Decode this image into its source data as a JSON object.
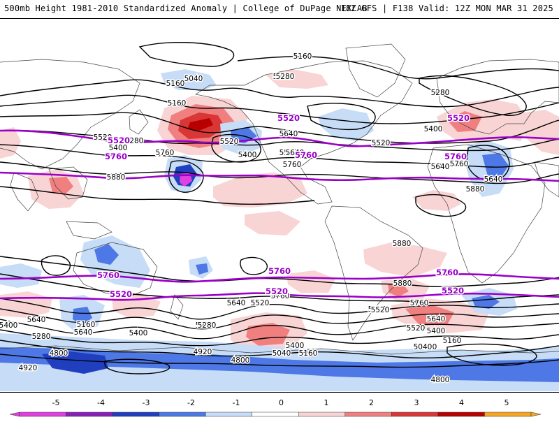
{
  "header": {
    "left": "500mb Height 1981-2010 Standardized Anomaly | College of DuPage NEXLAB",
    "right": "18Z GFS | F138 Valid: 12Z MON MAR 31 2025"
  },
  "colors": {
    "anom_neg5": "#e040e0",
    "anom_neg4": "#8a1fb8",
    "anom_neg3": "#1f3fbf",
    "anom_neg2": "#4d78e6",
    "anom_neg1": "#c6dcf7",
    "anom_pos1": "#f9d4d4",
    "anom_pos2": "#f08080",
    "anom_pos3": "#d93636",
    "anom_pos4": "#b80000",
    "anom_pos5": "#f5a623",
    "highlight_contour": "#9a00c8",
    "contour": "#000000",
    "coastline": "#444444"
  },
  "map": {
    "contour_labels": [
      "5160",
      "5040",
      "5280",
      "5160",
      "5280",
      "5520",
      "5400",
      "5640",
      "5760",
      "5520",
      "5400",
      "5880",
      "5520",
      "5640",
      "5760",
      "5280",
      "5160",
      "5520",
      "5400",
      "5640",
      "5760",
      "5640",
      "5880",
      "5280",
      "5880",
      "5880",
      "5760",
      "5640",
      "5520",
      "5400",
      "5520",
      "5160",
      "5640",
      "5400",
      "5280",
      "4920",
      "4800",
      "5160",
      "5040",
      "4920",
      "4800",
      "4800",
      "5040",
      "5160",
      "5280",
      "5400",
      "5520",
      "5640",
      "5760",
      "5520",
      "5640",
      "5400",
      "5280",
      "5040",
      "5160",
      "5400"
    ],
    "highlight_labels": [
      "5520",
      "5760",
      "5520",
      "5760",
      "5520",
      "5760",
      "5760",
      "5520",
      "5760",
      "5520",
      "5760",
      "5520"
    ]
  },
  "colorbar": {
    "ticks": [
      "-5",
      "-4",
      "-3",
      "-2",
      "-1",
      "0",
      "1",
      "2",
      "3",
      "4",
      "5"
    ]
  }
}
